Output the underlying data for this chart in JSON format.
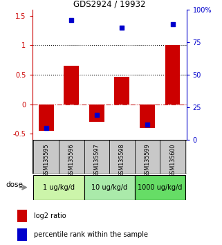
{
  "title": "GDS2924 / 19932",
  "samples": [
    "GSM135595",
    "GSM135596",
    "GSM135597",
    "GSM135598",
    "GSM135599",
    "GSM135600"
  ],
  "log2_ratio": [
    -0.45,
    0.65,
    -0.3,
    0.47,
    -0.4,
    1.0
  ],
  "percentile_rank": [
    -0.4,
    1.43,
    -0.18,
    1.3,
    -0.35,
    1.35
  ],
  "ylim_left": [
    -0.6,
    1.6
  ],
  "yticks_left": [
    -0.5,
    0.0,
    0.5,
    1.0,
    1.5
  ],
  "ytick_labels_left": [
    "-0.5",
    "0",
    "0.5",
    "1",
    "1.5"
  ],
  "yticks_right_pct": [
    0,
    25,
    50,
    75,
    100
  ],
  "ytick_labels_right": [
    "0",
    "25",
    "50",
    "75",
    "100%"
  ],
  "hline_dotted": [
    1.0,
    0.5
  ],
  "hline_dashed_red": 0.0,
  "dose_groups": [
    {
      "label": "1 ug/kg/d",
      "samples": [
        0,
        1
      ],
      "color": "#ccf5aa"
    },
    {
      "label": "10 ug/kg/d",
      "samples": [
        2,
        3
      ],
      "color": "#aaeaaa"
    },
    {
      "label": "1000 ug/kg/d",
      "samples": [
        4,
        5
      ],
      "color": "#66dd66"
    }
  ],
  "bar_color": "#cc0000",
  "dot_color": "#0000cc",
  "bar_width": 0.6,
  "dot_size": 22,
  "legend_red_label": "log2 ratio",
  "legend_blue_label": "percentile rank within the sample",
  "dose_label": "dose",
  "background_color": "#ffffff",
  "tick_area_color": "#c8c8c8",
  "left_axis_color": "#cc0000",
  "right_axis_color": "#0000cc"
}
